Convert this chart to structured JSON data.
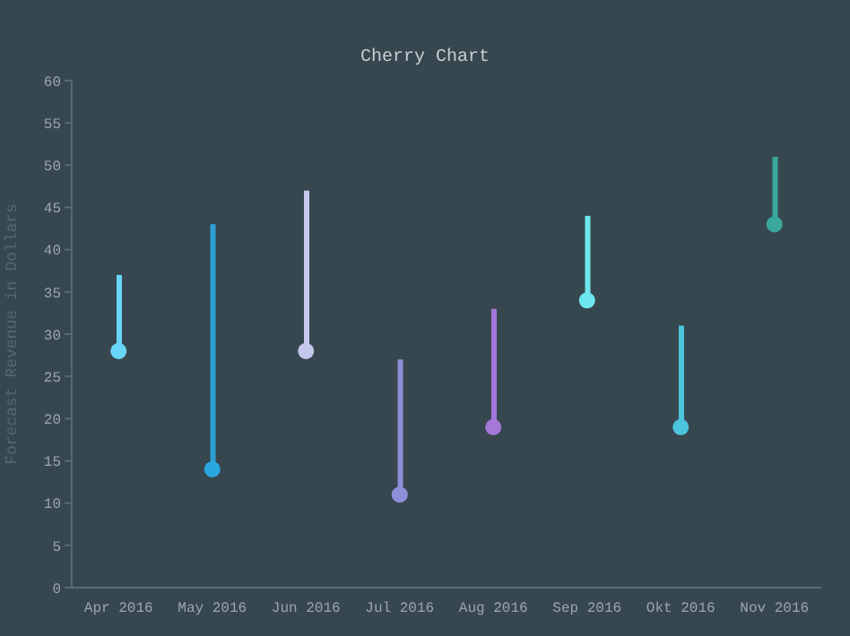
{
  "chart_data": {
    "type": "bar",
    "title": "Cherry Chart",
    "ylabel": "Forecast Revenue in Dollars",
    "categories": [
      "Apr 2016",
      "May 2016",
      "Jun 2016",
      "Jul 2016",
      "Aug 2016",
      "Sep 2016",
      "Okt 2016",
      "Nov 2016"
    ],
    "series": [
      {
        "base": [
          28,
          14,
          28,
          11,
          19,
          34,
          19,
          43
        ],
        "values": [
          9,
          29,
          19,
          16,
          14,
          10,
          12,
          8
        ],
        "colors": [
          "#6ad6f7",
          "#2e9fd6",
          "#c5c8ec",
          "#8d8fd8",
          "#a577d9",
          "#6ee6ee",
          "#4cc4dd",
          "#3aa89a"
        ]
      },
      {
        "type": "scatter",
        "x": [
          "Apr 2016",
          "May 2016",
          "Jun 2016",
          "Jul 2016",
          "Aug 2016",
          "Sep 2016",
          "Okt 2016",
          "Nov 2016"
        ],
        "values": [
          28,
          14,
          28,
          11,
          19,
          34,
          19,
          43
        ],
        "colors": [
          "#6ad6f7",
          "#29a8e0",
          "#c5c8ec",
          "#8d8fd8",
          "#a577d9",
          "#6ee6ee",
          "#4cc4dd",
          "#3aa89a"
        ]
      }
    ],
    "marker": "circle",
    "ylim": [
      0,
      60
    ],
    "yticks": [
      0,
      5,
      10,
      15,
      20,
      25,
      30,
      35,
      40,
      45,
      50,
      55,
      60
    ],
    "grid": false,
    "legend": false
  }
}
